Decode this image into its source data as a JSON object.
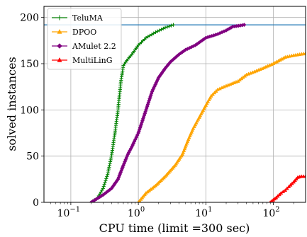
{
  "chart_data": {
    "type": "line",
    "xlabel": "CPU time (limit =300 sec)",
    "ylabel": "solved instances",
    "xscale": "log",
    "xlim": [
      0.04,
      300
    ],
    "ylim": [
      0,
      212
    ],
    "xticks": [
      0.1,
      1,
      10,
      100
    ],
    "xtick_labels": [
      "10",
      "10",
      "10",
      "10"
    ],
    "xtick_exponents": [
      "−1",
      "0",
      "1",
      "2"
    ],
    "yticks": [
      0,
      50,
      100,
      150,
      200
    ],
    "ytick_labels": [
      "0",
      "50",
      "100",
      "150",
      "200"
    ],
    "grid": true,
    "legend_position": "top-left",
    "reference_line": {
      "y": 192,
      "color": "#1f77b4"
    },
    "series": [
      {
        "name": "TeluMA",
        "color": "#008000",
        "marker": "plus",
        "points": [
          [
            0.2,
            0
          ],
          [
            0.25,
            5
          ],
          [
            0.3,
            15
          ],
          [
            0.35,
            30
          ],
          [
            0.4,
            50
          ],
          [
            0.45,
            75
          ],
          [
            0.5,
            100
          ],
          [
            0.55,
            130
          ],
          [
            0.6,
            148
          ],
          [
            0.7,
            155
          ],
          [
            0.8,
            160
          ],
          [
            1.0,
            170
          ],
          [
            1.3,
            178
          ],
          [
            1.8,
            184
          ],
          [
            2.5,
            189
          ],
          [
            3.3,
            192
          ]
        ]
      },
      {
        "name": "DPOO",
        "color": "#ffa500",
        "marker": "triangle-up",
        "points": [
          [
            1.0,
            0
          ],
          [
            1.3,
            10
          ],
          [
            1.8,
            18
          ],
          [
            2.5,
            28
          ],
          [
            3.5,
            40
          ],
          [
            4.5,
            52
          ],
          [
            5.5,
            68
          ],
          [
            6.5,
            80
          ],
          [
            8.0,
            92
          ],
          [
            10.0,
            105
          ],
          [
            12.0,
            115
          ],
          [
            15.0,
            122
          ],
          [
            20.0,
            126
          ],
          [
            30.0,
            131
          ],
          [
            40.0,
            138
          ],
          [
            60.0,
            143
          ],
          [
            100.0,
            150
          ],
          [
            150.0,
            157
          ],
          [
            200.0,
            159
          ],
          [
            300.0,
            161
          ]
        ]
      },
      {
        "name": "AMulet 2.2",
        "color": "#800080",
        "marker": "diamond",
        "points": [
          [
            0.2,
            0
          ],
          [
            0.3,
            8
          ],
          [
            0.4,
            15
          ],
          [
            0.5,
            25
          ],
          [
            0.6,
            40
          ],
          [
            0.7,
            52
          ],
          [
            0.8,
            60
          ],
          [
            0.9,
            68
          ],
          [
            1.0,
            75
          ],
          [
            1.3,
            100
          ],
          [
            1.6,
            120
          ],
          [
            2.0,
            135
          ],
          [
            2.5,
            145
          ],
          [
            3.0,
            152
          ],
          [
            4.0,
            160
          ],
          [
            5.0,
            165
          ],
          [
            7.0,
            170
          ],
          [
            10.0,
            178
          ],
          [
            15.0,
            182
          ],
          [
            20.0,
            186
          ],
          [
            25.0,
            190
          ],
          [
            37.0,
            192
          ]
        ]
      },
      {
        "name": "MultiLinG",
        "color": "#ff0000",
        "marker": "triangle-up",
        "points": [
          [
            90.0,
            0
          ],
          [
            110.0,
            5
          ],
          [
            130.0,
            10
          ],
          [
            150.0,
            13
          ],
          [
            170.0,
            17
          ],
          [
            200.0,
            22
          ],
          [
            230.0,
            27
          ],
          [
            260.0,
            28
          ],
          [
            300.0,
            28
          ]
        ]
      }
    ]
  }
}
